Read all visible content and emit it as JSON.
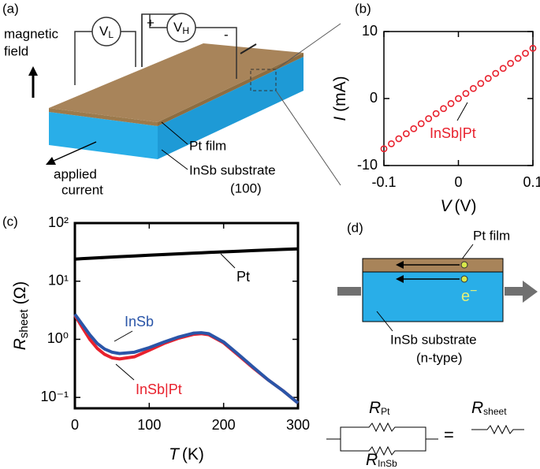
{
  "chart_data": [
    {
      "type": "scatter",
      "panel_label": "(b)",
      "xlabel": {
        "var": "V",
        "unit": "(V)"
      },
      "ylabel": {
        "var": "I",
        "unit": "(mA)"
      },
      "xlim": [
        -0.1,
        0.1
      ],
      "xticks": [
        -0.1,
        0,
        0.1
      ],
      "ylim": [
        -10,
        10
      ],
      "yticks": [
        -10,
        0,
        10
      ],
      "x": [
        -0.1,
        -0.09,
        -0.08,
        -0.07,
        -0.06,
        -0.05,
        -0.04,
        -0.03,
        -0.02,
        -0.01,
        0,
        0.01,
        0.02,
        0.03,
        0.04,
        0.05,
        0.06,
        0.07,
        0.08,
        0.09,
        0.1
      ],
      "series": [
        {
          "name": "InSb|Pt",
          "color": "#e8212d",
          "values": [
            -7.5,
            -6.75,
            -6,
            -5.25,
            -4.5,
            -3.75,
            -3,
            -2.25,
            -1.5,
            -0.75,
            0,
            0.75,
            1.5,
            2.25,
            3,
            3.75,
            4.5,
            5.25,
            6,
            6.75,
            7.5
          ]
        }
      ]
    },
    {
      "type": "line",
      "panel_label": "(c)",
      "log_y": true,
      "xlabel": {
        "var": "T",
        "unit": "(K)"
      },
      "ylabel": {
        "var": "R",
        "sub": "sheet",
        "unit": "(Ω)"
      },
      "xlim": [
        0,
        300
      ],
      "xticks": [
        0,
        100,
        200,
        300
      ],
      "ylim": [
        0.065,
        100
      ],
      "yticks": [
        {
          "value": 0.1,
          "label": "10⁻¹"
        },
        {
          "value": 1,
          "label": "10⁰"
        },
        {
          "value": 10,
          "label": "10¹"
        },
        {
          "value": 100,
          "label": "10²"
        }
      ],
      "x": [
        0,
        10,
        20,
        30,
        40,
        50,
        60,
        80,
        100,
        120,
        140,
        160,
        170,
        180,
        200,
        220,
        240,
        260,
        280,
        300
      ],
      "series": [
        {
          "name": "Pt",
          "color": "#000000",
          "values": [
            24,
            24.4,
            24.8,
            25.2,
            25.6,
            26,
            26.4,
            27.2,
            28,
            28.8,
            29.6,
            30.4,
            30.8,
            31.2,
            32,
            32.8,
            33.6,
            34.4,
            35.2,
            36
          ]
        },
        {
          "name": "InSb|Pt",
          "color": "#e8212d",
          "values": [
            2.6,
            1.6,
            1.0,
            0.7,
            0.55,
            0.48,
            0.46,
            0.5,
            0.65,
            0.85,
            1.05,
            1.22,
            1.25,
            1.2,
            0.87,
            0.53,
            0.32,
            0.2,
            0.13,
            0.08
          ]
        },
        {
          "name": "InSb",
          "color": "#2a55a8",
          "values": [
            2.7,
            1.8,
            1.2,
            0.85,
            0.68,
            0.6,
            0.57,
            0.6,
            0.72,
            0.9,
            1.1,
            1.28,
            1.3,
            1.25,
            0.9,
            0.55,
            0.33,
            0.2,
            0.13,
            0.08
          ]
        }
      ]
    }
  ],
  "diagram_a": {
    "panel_label": "(a)",
    "field": [
      "magnetic",
      "field"
    ],
    "vl": {
      "v": "V",
      "sub": "L"
    },
    "vh": {
      "v": "V",
      "sub": "H"
    },
    "plus": "+",
    "minus": "-",
    "pt": "Pt film",
    "substrate": "InSb substrate",
    "orientation": "(100)",
    "current": [
      "applied",
      "current"
    ]
  },
  "diagram_d": {
    "panel_label": "(d)",
    "pt": "Pt film",
    "electron": {
      "e": "e",
      "sup": "−"
    },
    "substrate": "InSb substrate",
    "type": "(n-type)",
    "r_pt": {
      "r": "R",
      "sub": "Pt"
    },
    "r_insb": {
      "r": "R",
      "sub": "InSb"
    },
    "equals": "=",
    "r_sheet": {
      "r": "R",
      "sub": "sheet"
    }
  }
}
